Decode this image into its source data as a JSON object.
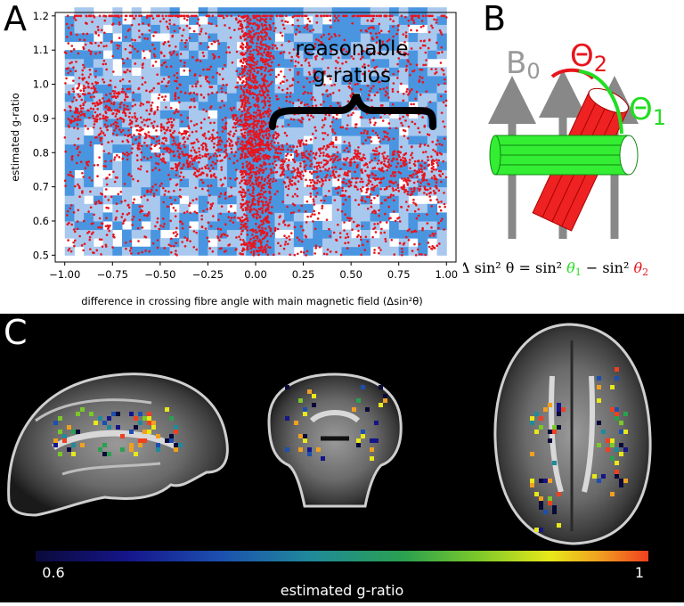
{
  "panels": {
    "a": {
      "letter": "A"
    },
    "b": {
      "letter": "B"
    },
    "c": {
      "letter": "C"
    }
  },
  "chart_data": {
    "type": "scatter",
    "xlabel": "difference in crossing fibre angle with main magnetic field (Δsin²θ)",
    "ylabel": "estimated g-ratio",
    "xlim": [
      -1.05,
      1.05
    ],
    "ylim": [
      0.48,
      1.21
    ],
    "x_ticks": [
      "−1.00",
      "−0.75",
      "−0.50",
      "−0.25",
      "0.00",
      "0.25",
      "0.50",
      "0.75",
      "1.00"
    ],
    "x_tick_values": [
      -1.0,
      -0.75,
      -0.5,
      -0.25,
      0.0,
      0.25,
      0.5,
      0.75,
      1.0
    ],
    "y_ticks": [
      "0.5",
      "0.6",
      "0.7",
      "0.8",
      "0.9",
      "1.0",
      "1.1",
      "1.2"
    ],
    "y_tick_values": [
      0.5,
      0.6,
      0.7,
      0.8,
      0.9,
      1.0,
      1.1,
      1.2
    ],
    "annotation": [
      "reasonable",
      "g-ratios"
    ],
    "annotation_bracket_x": [
      0.1,
      1.0
    ],
    "point_color": "#e8141c",
    "background_color": "#a9c8ee",
    "dense_color": "#4a95e0",
    "series": [
      {
        "x": [
          -0.95,
          -0.9,
          -0.85,
          -0.8,
          -0.75,
          -0.7,
          -0.65,
          -0.6,
          -0.55,
          -0.5,
          -0.45,
          -0.4,
          -0.35,
          -0.3,
          -0.25,
          -0.2,
          -0.15,
          -0.1,
          -0.05,
          0.0,
          0.05,
          0.1,
          0.15,
          0.2,
          0.25,
          0.3,
          0.35,
          0.4,
          0.45,
          0.5,
          0.55,
          0.6,
          0.65,
          0.7,
          0.75,
          0.8,
          0.85,
          0.9,
          0.95
        ],
        "y": [
          0.93,
          0.96,
          0.95,
          0.9,
          0.94,
          0.92,
          0.88,
          0.85,
          0.87,
          0.83,
          0.86,
          0.8,
          0.82,
          0.78,
          0.79,
          0.81,
          0.84,
          0.86,
          0.85,
          0.83,
          0.82,
          0.8,
          0.77,
          0.76,
          0.78,
          0.74,
          0.76,
          0.77,
          0.73,
          0.75,
          0.74,
          0.72,
          0.76,
          0.73,
          0.75,
          0.74,
          0.72,
          0.73,
          0.74
        ]
      }
    ]
  },
  "panel_b": {
    "b0_label": "B",
    "b0_sub": "0",
    "theta2_label": "Θ",
    "theta2_sub": "2",
    "theta1_label": "Θ",
    "theta1_sub": "1",
    "formula": {
      "lhs": "Δ sin² θ = sin² ",
      "t1": "θ",
      "t1_sub": "1",
      "mid": " − sin² ",
      "t2": "θ",
      "t2_sub": "2"
    },
    "colors": {
      "theta1": "#22dd22",
      "theta2": "#e8141c",
      "arrow": "#888888",
      "green_fibre": "#33ee33",
      "red_fibre": "#ee2222"
    }
  },
  "panel_c": {
    "colorbar_min": "0.6",
    "colorbar_max": "1",
    "colorbar_label": "estimated g-ratio",
    "colormap": [
      "#0a0a3a",
      "#15158a",
      "#1c4fb0",
      "#1f8a9a",
      "#2aa050",
      "#7ac82a",
      "#e8e81a",
      "#f0a020",
      "#f04020"
    ]
  }
}
